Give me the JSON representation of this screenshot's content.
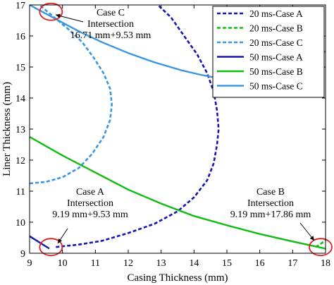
{
  "chart_data": {
    "type": "line",
    "title": "",
    "xlabel": "Casing Thickness (mm)",
    "ylabel": "Liner Thickness (mm)",
    "xlim": [
      9,
      18
    ],
    "ylim": [
      9,
      17
    ],
    "xticks": [
      9,
      10,
      11,
      12,
      13,
      14,
      15,
      16,
      17,
      18
    ],
    "yticks": [
      9,
      10,
      11,
      12,
      13,
      14,
      15,
      16,
      17
    ],
    "grid": false,
    "legend_position": "top-right",
    "colors": {
      "dark_blue": "#1515b8",
      "green": "#11bb11",
      "light_blue": "#3a96e0",
      "marker": "#e02020"
    },
    "series": [
      {
        "name": "20 ms-Case A",
        "color": "dark_blue",
        "style": "dashed",
        "x": [
          9.8,
          10.5,
          11.2,
          12.0,
          12.8,
          13.5,
          14.0,
          14.4,
          14.6,
          14.7,
          14.75,
          14.7,
          14.6,
          14.4,
          14.1,
          13.7,
          13.3,
          12.9
        ],
        "y": [
          9.2,
          9.28,
          9.4,
          9.65,
          9.95,
          10.35,
          10.8,
          11.35,
          11.9,
          12.5,
          13.0,
          13.6,
          14.2,
          14.8,
          15.4,
          16.0,
          16.6,
          17.0
        ]
      },
      {
        "name": "20 ms-Case B",
        "color": "green",
        "style": "dashed",
        "x": [
          17.7,
          17.85,
          18.0
        ],
        "y": [
          9.2,
          9.3,
          9.42
        ]
      },
      {
        "name": "20 ms-Case C",
        "color": "light_blue",
        "style": "dashed",
        "x": [
          9.0,
          9.5,
          10.0,
          10.5,
          10.9,
          11.25,
          11.45,
          11.5,
          11.45,
          11.25,
          10.95,
          10.6,
          10.2,
          9.75,
          9.3
        ],
        "y": [
          11.25,
          11.3,
          11.45,
          11.75,
          12.2,
          12.75,
          13.3,
          13.8,
          14.3,
          14.8,
          15.3,
          15.8,
          16.2,
          16.6,
          17.0
        ]
      },
      {
        "name": "50 ms-Case A",
        "color": "dark_blue",
        "style": "solid",
        "x": [
          9.0,
          9.3,
          9.6
        ],
        "y": [
          9.55,
          9.35,
          9.15
        ]
      },
      {
        "name": "50 ms-Case B",
        "color": "green",
        "style": "solid",
        "x": [
          9.0,
          10.0,
          11.0,
          12.0,
          13.0,
          14.0,
          15.0,
          16.0,
          17.0,
          18.0
        ],
        "y": [
          12.75,
          12.15,
          11.6,
          11.05,
          10.6,
          10.2,
          9.9,
          9.62,
          9.38,
          9.15
        ]
      },
      {
        "name": "50 ms-Case C",
        "color": "light_blue",
        "style": "solid",
        "x": [
          9.0,
          9.7,
          10.5,
          11.2,
          12.0,
          12.8,
          13.6,
          14.2,
          14.7,
          15.0,
          18.0
        ],
        "y": [
          17.0,
          16.6,
          16.15,
          15.8,
          15.45,
          15.15,
          14.9,
          14.75,
          14.65,
          14.6,
          15.5
        ]
      }
    ],
    "annotations": [
      {
        "lines": [
          "Case C",
          "Intersection",
          "16.71 mm+9.53 mm"
        ]
      },
      {
        "lines": [
          "Case A",
          "Intersection",
          "9.19 mm+9.53 mm"
        ]
      },
      {
        "lines": [
          "Case B",
          "Intersection",
          "9.19 mm+17.86 mm"
        ]
      }
    ],
    "markers": [
      {
        "x": 9.65,
        "y": 16.78
      },
      {
        "x": 9.65,
        "y": 9.2
      },
      {
        "x": 17.85,
        "y": 9.2
      }
    ]
  }
}
